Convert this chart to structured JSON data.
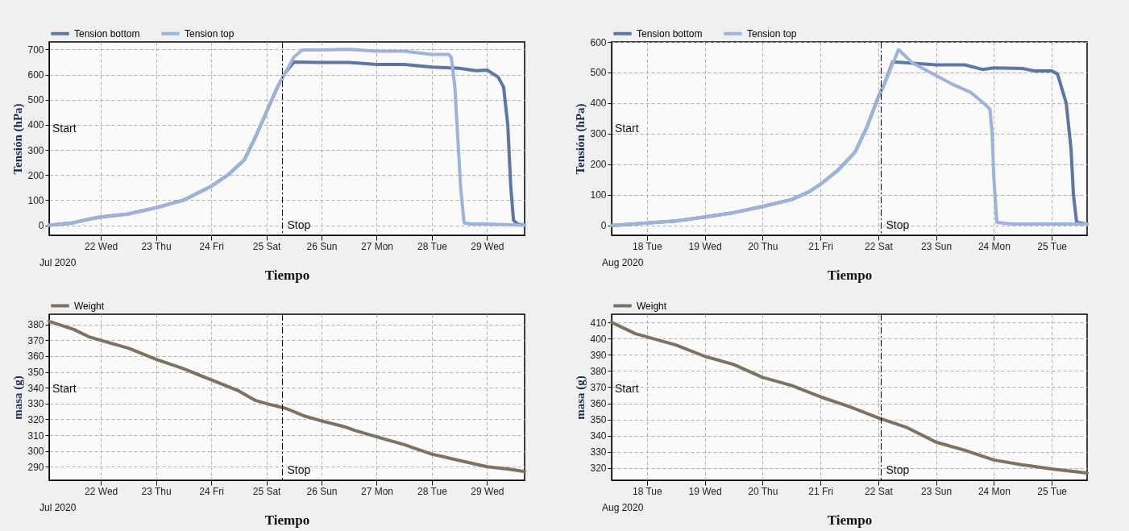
{
  "chart_data": [
    {
      "type": "line",
      "xlabel": "Tiempo",
      "ylabel": "Tensión (hPa)",
      "legend": "top left",
      "grid": true,
      "line_style": "solid",
      "xlim": [
        "2020-07-21T01:30",
        "2020-07-29T16:20"
      ],
      "ylim": [
        -40,
        730
      ],
      "xticks": [
        {
          "value": "2020-07-22T00:00",
          "label": "22 Wed"
        },
        {
          "value": "2020-07-23T00:00",
          "label": "23 Thu"
        },
        {
          "value": "2020-07-24T00:00",
          "label": "24 Fri"
        },
        {
          "value": "2020-07-25T00:00",
          "label": "25 Sat"
        },
        {
          "value": "2020-07-26T00:00",
          "label": "26 Sun"
        },
        {
          "value": "2020-07-27T00:00",
          "label": "27 Mon"
        },
        {
          "value": "2020-07-28T00:00",
          "label": "28 Tue"
        },
        {
          "value": "2020-07-29T00:00",
          "label": "29 Wed"
        }
      ],
      "yticks": [
        0,
        100,
        200,
        300,
        400,
        500,
        600,
        700
      ],
      "ref_lines": [
        {
          "axis": "x",
          "value": "2020-07-25T07:00",
          "label": "Stop",
          "line_style": "dashed",
          "color": "#000000"
        }
      ],
      "annotations": [
        "Jul 2020",
        "Start"
      ],
      "series": [
        {
          "name": "Tension bottom",
          "color": "#5d76a6",
          "x": [
            "2020-07-21T01:30",
            "2020-07-21T12:00",
            "2020-07-21T19:12",
            "2020-07-22T00:00",
            "2020-07-22T12:00",
            "2020-07-23T00:00",
            "2020-07-23T12:00",
            "2020-07-24T00:00",
            "2020-07-24T07:12",
            "2020-07-24T14:24",
            "2020-07-24T19:12",
            "2020-07-25T00:00",
            "2020-07-25T04:48",
            "2020-07-25T08:24",
            "2020-07-25T12:00",
            "2020-07-26T00:00",
            "2020-07-26T12:00",
            "2020-07-27T00:00",
            "2020-07-27T12:00",
            "2020-07-28T00:00",
            "2020-07-28T12:00",
            "2020-07-28T19:12",
            "2020-07-29T00:00",
            "2020-07-29T04:48",
            "2020-07-29T07:12",
            "2020-07-29T09:00",
            "2020-07-29T10:20",
            "2020-07-29T11:30",
            "2020-07-29T13:12",
            "2020-07-29T16:20"
          ],
          "values": [
            0,
            10,
            25,
            33,
            45,
            70,
            100,
            155,
            200,
            260,
            350,
            450,
            550,
            610,
            650,
            648,
            648,
            640,
            640,
            630,
            625,
            615,
            618,
            590,
            550,
            400,
            150,
            20,
            5,
            0
          ]
        },
        {
          "name": "Tension top",
          "color": "#9db3dd",
          "x": [
            "2020-07-21T01:30",
            "2020-07-21T12:00",
            "2020-07-21T19:12",
            "2020-07-22T00:00",
            "2020-07-22T12:00",
            "2020-07-23T00:00",
            "2020-07-23T12:00",
            "2020-07-24T00:00",
            "2020-07-24T07:12",
            "2020-07-24T14:24",
            "2020-07-24T19:12",
            "2020-07-25T00:00",
            "2020-07-25T04:48",
            "2020-07-25T08:24",
            "2020-07-25T12:00",
            "2020-07-25T15:36",
            "2020-07-26T00:00",
            "2020-07-26T12:00",
            "2020-07-27T00:00",
            "2020-07-27T12:00",
            "2020-07-28T00:00",
            "2020-07-28T07:12",
            "2020-07-28T08:24",
            "2020-07-28T10:00",
            "2020-07-28T11:15",
            "2020-07-28T12:30",
            "2020-07-28T14:00",
            "2020-07-28T16:48",
            "2020-07-29T00:00",
            "2020-07-29T16:20"
          ],
          "values": [
            0,
            10,
            25,
            33,
            45,
            70,
            100,
            155,
            200,
            260,
            350,
            450,
            550,
            610,
            670,
            698,
            698,
            700,
            693,
            693,
            680,
            680,
            670,
            550,
            350,
            150,
            10,
            5,
            5,
            0
          ]
        }
      ]
    },
    {
      "type": "line",
      "xlabel": "Tiempo",
      "ylabel": "Tensión (hPa)",
      "legend": "top left",
      "grid": true,
      "line_style": "solid",
      "xlim": [
        "2020-08-17T09:20",
        "2020-08-25T14:40"
      ],
      "ylim": [
        -32,
        600
      ],
      "xticks": [
        {
          "value": "2020-08-18T00:00",
          "label": "18 Tue"
        },
        {
          "value": "2020-08-19T00:00",
          "label": "19 Wed"
        },
        {
          "value": "2020-08-20T00:00",
          "label": "20 Thu"
        },
        {
          "value": "2020-08-21T00:00",
          "label": "21 Fri"
        },
        {
          "value": "2020-08-22T00:00",
          "label": "22 Sat"
        },
        {
          "value": "2020-08-23T00:00",
          "label": "23 Sun"
        },
        {
          "value": "2020-08-24T00:00",
          "label": "24 Mon"
        },
        {
          "value": "2020-08-25T00:00",
          "label": "25 Tue"
        }
      ],
      "yticks": [
        0,
        100,
        200,
        300,
        400,
        500,
        600
      ],
      "ref_lines": [
        {
          "axis": "x",
          "value": "2020-08-22T01:12",
          "label": "Stop",
          "line_style": "dashed",
          "color": "#000000"
        }
      ],
      "annotations": [
        "Aug 2020",
        "Start"
      ],
      "series": [
        {
          "name": "Tension bottom",
          "color": "#5d76a6",
          "x": [
            "2020-08-17T09:20",
            "2020-08-18T00:00",
            "2020-08-18T12:00",
            "2020-08-19T00:00",
            "2020-08-19T12:00",
            "2020-08-20T00:00",
            "2020-08-20T12:00",
            "2020-08-20T19:12",
            "2020-08-21T00:00",
            "2020-08-21T07:12",
            "2020-08-21T14:24",
            "2020-08-21T19:12",
            "2020-08-22T00:00",
            "2020-08-22T02:24",
            "2020-08-22T06:00",
            "2020-08-22T14:24",
            "2020-08-23T00:00",
            "2020-08-23T12:00",
            "2020-08-23T19:12",
            "2020-08-24T00:00",
            "2020-08-24T12:00",
            "2020-08-24T16:48",
            "2020-08-25T00:00",
            "2020-08-25T02:24",
            "2020-08-25T06:00",
            "2020-08-25T08:00",
            "2020-08-25T09:00",
            "2020-08-25T10:20",
            "2020-08-25T14:40"
          ],
          "values": [
            0,
            8,
            15,
            28,
            42,
            62,
            85,
            110,
            135,
            180,
            240,
            320,
            420,
            460,
            535,
            530,
            525,
            525,
            510,
            515,
            513,
            505,
            505,
            495,
            400,
            250,
            100,
            10,
            5
          ]
        },
        {
          "name": "Tension top",
          "color": "#9db3dd",
          "x": [
            "2020-08-17T09:20",
            "2020-08-18T00:00",
            "2020-08-18T12:00",
            "2020-08-19T00:00",
            "2020-08-19T12:00",
            "2020-08-20T00:00",
            "2020-08-20T12:00",
            "2020-08-20T19:12",
            "2020-08-21T00:00",
            "2020-08-21T07:12",
            "2020-08-21T14:24",
            "2020-08-21T19:12",
            "2020-08-22T00:00",
            "2020-08-22T02:24",
            "2020-08-22T08:24",
            "2020-08-22T14:24",
            "2020-08-23T00:00",
            "2020-08-23T07:12",
            "2020-08-23T14:24",
            "2020-08-23T20:24",
            "2020-08-23T22:20",
            "2020-08-23T23:15",
            "2020-08-24T00:00",
            "2020-08-24T01:12",
            "2020-08-24T07:12",
            "2020-08-25T14:40"
          ],
          "values": [
            0,
            8,
            15,
            28,
            42,
            62,
            85,
            110,
            135,
            180,
            240,
            320,
            420,
            460,
            575,
            530,
            490,
            460,
            435,
            395,
            380,
            300,
            150,
            10,
            5,
            5
          ]
        }
      ]
    },
    {
      "type": "line",
      "xlabel": "Tiempo",
      "ylabel": "masa (g)",
      "legend": "top left",
      "grid": true,
      "line_style": "solid",
      "xlim": [
        "2020-07-21T01:30",
        "2020-07-29T16:20"
      ],
      "ylim": [
        281.5,
        386.5
      ],
      "xticks": [
        {
          "value": "2020-07-22T00:00",
          "label": "22 Wed"
        },
        {
          "value": "2020-07-23T00:00",
          "label": "23 Thu"
        },
        {
          "value": "2020-07-24T00:00",
          "label": "24 Fri"
        },
        {
          "value": "2020-07-25T00:00",
          "label": "25 Sat"
        },
        {
          "value": "2020-07-26T00:00",
          "label": "26 Sun"
        },
        {
          "value": "2020-07-27T00:00",
          "label": "27 Mon"
        },
        {
          "value": "2020-07-28T00:00",
          "label": "28 Tue"
        },
        {
          "value": "2020-07-29T00:00",
          "label": "29 Wed"
        }
      ],
      "yticks": [
        290,
        300,
        310,
        320,
        330,
        340,
        350,
        360,
        370,
        380
      ],
      "ref_lines": [
        {
          "axis": "x",
          "value": "2020-07-25T07:00",
          "label": "Stop",
          "line_style": "dashed",
          "color": "#000000"
        }
      ],
      "annotations": [
        "Jul 2020",
        "Start"
      ],
      "series": [
        {
          "name": "Weight",
          "color": "#7d7260",
          "x": [
            "2020-07-21T01:30",
            "2020-07-21T12:00",
            "2020-07-21T19:12",
            "2020-07-22T00:00",
            "2020-07-22T12:00",
            "2020-07-23T00:00",
            "2020-07-23T12:00",
            "2020-07-24T00:00",
            "2020-07-24T12:00",
            "2020-07-24T19:12",
            "2020-07-25T00:00",
            "2020-07-25T08:24",
            "2020-07-25T16:48",
            "2020-07-26T00:00",
            "2020-07-26T10:48",
            "2020-07-26T14:24",
            "2020-07-27T00:00",
            "2020-07-27T12:00",
            "2020-07-28T00:00",
            "2020-07-28T12:00",
            "2020-07-29T00:00",
            "2020-07-29T09:36",
            "2020-07-29T16:20"
          ],
          "values": [
            382,
            377,
            372,
            370,
            365,
            358,
            352,
            345,
            338,
            332,
            330,
            327,
            322,
            319,
            315,
            313,
            309,
            304,
            298,
            294,
            290,
            288.5,
            287
          ]
        }
      ]
    },
    {
      "type": "line",
      "xlabel": "Tiempo",
      "ylabel": "masa (g)",
      "legend": "top left",
      "grid": true,
      "line_style": "solid",
      "xlim": [
        "2020-08-17T09:20",
        "2020-08-25T14:40"
      ],
      "ylim": [
        312.5,
        415
      ],
      "xticks": [
        {
          "value": "2020-08-18T00:00",
          "label": "18 Tue"
        },
        {
          "value": "2020-08-19T00:00",
          "label": "19 Wed"
        },
        {
          "value": "2020-08-20T00:00",
          "label": "20 Thu"
        },
        {
          "value": "2020-08-21T00:00",
          "label": "21 Fri"
        },
        {
          "value": "2020-08-22T00:00",
          "label": "22 Sat"
        },
        {
          "value": "2020-08-23T00:00",
          "label": "23 Sun"
        },
        {
          "value": "2020-08-24T00:00",
          "label": "24 Mon"
        },
        {
          "value": "2020-08-25T00:00",
          "label": "25 Tue"
        }
      ],
      "yticks": [
        320,
        330,
        340,
        350,
        360,
        370,
        380,
        390,
        400,
        410
      ],
      "ref_lines": [
        {
          "axis": "x",
          "value": "2020-08-22T01:12",
          "label": "Stop",
          "line_style": "dashed",
          "color": "#000000"
        }
      ],
      "annotations": [
        "Aug 2020",
        "Start"
      ],
      "series": [
        {
          "name": "Weight",
          "color": "#7d7260",
          "x": [
            "2020-08-17T09:20",
            "2020-08-17T19:12",
            "2020-08-18T00:00",
            "2020-08-18T12:00",
            "2020-08-19T00:00",
            "2020-08-19T12:00",
            "2020-08-20T00:00",
            "2020-08-20T12:00",
            "2020-08-21T00:00",
            "2020-08-21T12:00",
            "2020-08-22T00:00",
            "2020-08-22T12:00",
            "2020-08-23T00:00",
            "2020-08-23T12:00",
            "2020-08-24T00:00",
            "2020-08-24T12:00",
            "2020-08-25T00:00",
            "2020-08-25T14:40"
          ],
          "values": [
            410,
            403,
            401,
            396,
            389,
            384,
            376,
            371,
            364,
            358,
            351,
            345,
            336,
            331,
            325,
            322,
            319.5,
            317
          ]
        }
      ]
    }
  ]
}
